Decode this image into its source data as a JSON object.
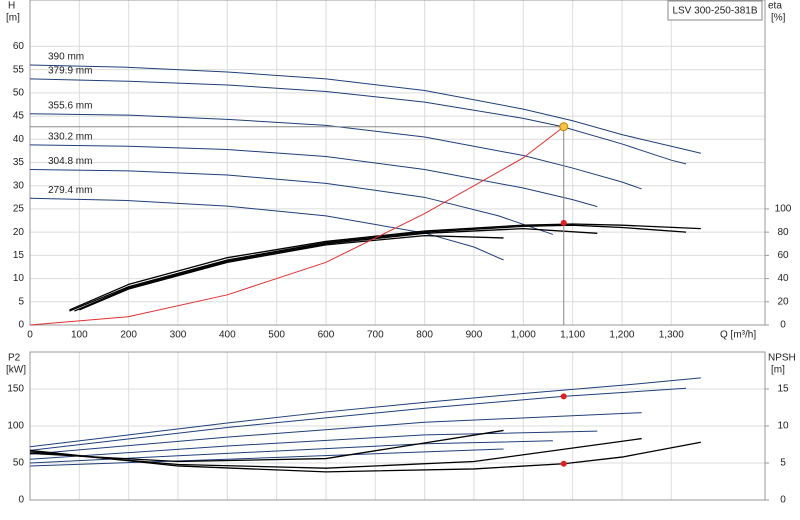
{
  "chart_data": [
    {
      "type": "line",
      "title": "LSV 300-250-381B",
      "ylabel_name": "H",
      "ylabel_unit": "[m]",
      "y2label_name": "eta",
      "y2label_unit": "[%]",
      "xlabel": "Q [m³/h]",
      "xlim": [
        0,
        1490
      ],
      "xticks": [
        0,
        100,
        200,
        300,
        400,
        500,
        600,
        700,
        800,
        900,
        {
          "value": 1000,
          "label": "1,000"
        },
        {
          "value": 1100,
          "label": "1,100"
        },
        {
          "value": 1200,
          "label": "1,200"
        },
        {
          "value": 1300,
          "label": "1,300"
        }
      ],
      "ylim": [
        0,
        70
      ],
      "yticks": [
        0,
        5,
        10,
        15,
        20,
        25,
        30,
        35,
        40,
        45,
        50,
        55,
        60
      ],
      "y2lim": [
        0,
        280
      ],
      "y2ticks": [
        0,
        20,
        40,
        60,
        80,
        100
      ],
      "grid": true,
      "series": [
        {
          "name": "390 mm",
          "color": "#1f3f7a",
          "x": [
            0,
            200,
            400,
            600,
            800,
            1000,
            1100,
            1200,
            1300,
            1360
          ],
          "values": [
            56,
            55.5,
            54.5,
            53,
            50.5,
            46.5,
            44,
            41,
            38.5,
            37
          ]
        },
        {
          "name": "379.9 mm",
          "color": "#1f3f7a",
          "x": [
            0,
            200,
            400,
            600,
            800,
            1000,
            1080,
            1200,
            1300,
            1330
          ],
          "values": [
            53,
            52.5,
            51.7,
            50.3,
            48,
            44.5,
            42.7,
            39,
            35.5,
            34.7
          ]
        },
        {
          "name": "355.6 mm",
          "color": "#1f3f7a",
          "x": [
            0,
            200,
            400,
            600,
            800,
            1000,
            1100,
            1200,
            1240
          ],
          "values": [
            45.5,
            45.2,
            44.3,
            43,
            40.5,
            36.5,
            33.8,
            30.8,
            29.3
          ]
        },
        {
          "name": "330.2 mm",
          "color": "#1f3f7a",
          "x": [
            0,
            200,
            400,
            600,
            800,
            1000,
            1100,
            1150
          ],
          "values": [
            38.8,
            38.5,
            37.8,
            36.3,
            33.5,
            29.5,
            27,
            25.5
          ]
        },
        {
          "name": "304.8 mm",
          "color": "#1f3f7a",
          "x": [
            0,
            200,
            400,
            600,
            800,
            950,
            1060
          ],
          "values": [
            33.5,
            33.2,
            32.3,
            30.5,
            27.5,
            23.5,
            19.5
          ]
        },
        {
          "name": "279.4 mm",
          "color": "#1f3f7a",
          "x": [
            0,
            200,
            400,
            600,
            800,
            900,
            960
          ],
          "values": [
            27.3,
            26.8,
            25.6,
            23.5,
            19.8,
            16.8,
            14
          ]
        },
        {
          "color": "#000000",
          "axis": "y2",
          "x": [
            80,
            200,
            400,
            600,
            800,
            1000,
            1100,
            1200,
            1360
          ],
          "values": [
            13,
            35,
            58,
            72,
            81,
            86,
            87,
            86,
            83
          ]
        },
        {
          "color": "#000000",
          "axis": "y2",
          "x": [
            80,
            200,
            400,
            600,
            800,
            1000,
            1100,
            1200,
            1330
          ],
          "values": [
            12,
            33,
            56,
            71,
            80,
            85,
            86,
            84,
            80
          ]
        },
        {
          "color": "#000000",
          "axis": "y2",
          "x": [
            90,
            200,
            400,
            600,
            800,
            1000,
            1150
          ],
          "values": [
            12,
            32,
            55,
            70,
            79,
            83,
            79
          ]
        },
        {
          "color": "#000000",
          "axis": "y2",
          "x": [
            100,
            200,
            400,
            600,
            800,
            960
          ],
          "values": [
            13,
            31,
            54,
            69,
            77,
            75
          ]
        },
        {
          "color": "#e03030",
          "x": [
            0,
            200,
            400,
            600,
            800,
            1000,
            1082
          ],
          "values": [
            0,
            1.8,
            6.5,
            13.5,
            24,
            36,
            42.7
          ]
        }
      ],
      "markers": [
        {
          "x": 1082,
          "value": 42.7,
          "color": "#f5c242"
        },
        {
          "x": 1082,
          "value": 88,
          "color": "#e02020",
          "axis": "y2"
        }
      ]
    },
    {
      "type": "line",
      "ylabel_name": "P2",
      "ylabel_unit": "[kW]",
      "y2label_name": "NPSH",
      "y2label_unit": "[m]",
      "xlim": [
        0,
        1490
      ],
      "ylim": [
        0,
        200
      ],
      "yticks": [
        0,
        50,
        100,
        150
      ],
      "y2lim": [
        0,
        20
      ],
      "y2ticks": [
        0,
        5,
        10,
        15
      ],
      "grid": true,
      "series": [
        {
          "color": "#1f3f7a",
          "x": [
            0,
            200,
            400,
            600,
            800,
            1000,
            1200,
            1360
          ],
          "values": [
            72,
            88,
            104,
            119,
            132,
            144,
            155,
            165
          ]
        },
        {
          "color": "#1f3f7a",
          "x": [
            0,
            400,
            800,
            1080,
            1330
          ],
          "values": [
            67,
            98,
            124,
            140,
            151
          ]
        },
        {
          "color": "#1f3f7a",
          "x": [
            0,
            400,
            800,
            1240
          ],
          "values": [
            62,
            85,
            105,
            118
          ]
        },
        {
          "color": "#1f3f7a",
          "x": [
            0,
            400,
            800,
            1150
          ],
          "values": [
            55,
            73,
            88,
            93
          ]
        },
        {
          "color": "#1f3f7a",
          "x": [
            0,
            400,
            800,
            1060
          ],
          "values": [
            50,
            63,
            76,
            80
          ]
        },
        {
          "color": "#1f3f7a",
          "x": [
            0,
            400,
            800,
            960
          ],
          "values": [
            46,
            55,
            65,
            69
          ]
        },
        {
          "color": "#000000",
          "axis": "y2",
          "x": [
            0,
            300,
            600,
            900,
            1082,
            1200,
            1360
          ],
          "values": [
            6.7,
            4.6,
            3.8,
            4.2,
            4.9,
            5.8,
            7.8
          ]
        },
        {
          "color": "#000000",
          "axis": "y2",
          "x": [
            0,
            300,
            600,
            900,
            1240
          ],
          "values": [
            6.5,
            4.8,
            4.3,
            5.2,
            8.3
          ]
        },
        {
          "color": "#000000",
          "axis": "y2",
          "x": [
            0,
            300,
            600,
            960
          ],
          "values": [
            6.3,
            5.2,
            5.6,
            9.4
          ]
        }
      ],
      "markers": [
        {
          "x": 1082,
          "value": 140,
          "color": "#e02020"
        },
        {
          "x": 1082,
          "value": 4.9,
          "color": "#e02020",
          "axis": "y2"
        }
      ]
    }
  ]
}
